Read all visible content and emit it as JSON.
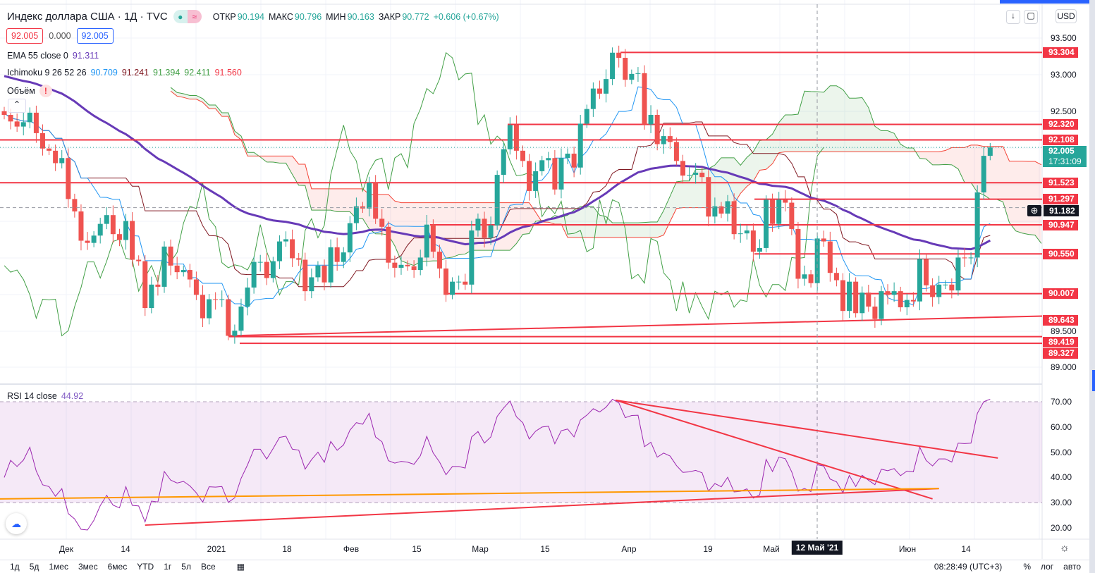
{
  "header": {
    "title": "Индекс доллара США · 1Д · TVC",
    "ohlc": [
      {
        "label": "ОТКР",
        "value": "90.194"
      },
      {
        "label": "МАКС",
        "value": "90.796"
      },
      {
        "label": "МИН",
        "value": "90.163"
      },
      {
        "label": "ЗАКР",
        "value": "90.772"
      }
    ],
    "change": "+0.606 (+0.67%)",
    "sell_price": "92.005",
    "spread": "0.000",
    "buy_price": "92.005"
  },
  "indicators": {
    "ema": {
      "label": "EMA 55 close 0",
      "value": "91.311"
    },
    "ichimoku": {
      "label": "Ichimoku 9 26 52 26",
      "values": [
        "90.709",
        "91.241",
        "91.394",
        "92.411",
        "91.560"
      ]
    },
    "volume": {
      "label": "Объём",
      "warning": "!"
    },
    "rsi": {
      "label": "RSI 14 close",
      "value": "44.92"
    }
  },
  "toolbar": {
    "currency": "USD"
  },
  "price_axis": [
    "93.500",
    "93.000",
    "92.500",
    "89.500",
    "89.000"
  ],
  "rsi_axis": [
    "70.00",
    "60.00",
    "50.00",
    "40.00",
    "30.00",
    "20.00"
  ],
  "levels": [
    "93.304",
    "92.320",
    "92.108",
    "91.523",
    "91.297",
    "90.947",
    "90.550",
    "90.007",
    "89.643",
    "89.419",
    "89.327"
  ],
  "current": {
    "price": "92.005",
    "countdown": "17:31:09"
  },
  "crosshair": {
    "price": "91.182",
    "date": "12 Май '21"
  },
  "time_axis": [
    "Дек",
    "14",
    "2021",
    "18",
    "Фев",
    "15",
    "Мар",
    "15",
    "Апр",
    "19",
    "Май",
    "Июн",
    "14"
  ],
  "bottom_bar": {
    "ranges": [
      "1д",
      "5д",
      "1мес",
      "3мес",
      "6мес",
      "YTD",
      "1г",
      "5л",
      "Все"
    ],
    "time": "08:28:49 (UTC+3)",
    "percent": "%",
    "log": "лог",
    "auto": "авто"
  },
  "colors": {
    "up": "#26a69a",
    "down": "#ef5350",
    "ema": "#673ab7",
    "level": "#f23645",
    "rsi": "#9c27b0"
  },
  "chart_data": {
    "type": "candlestick",
    "symbol": "DXY",
    "interval": "1D",
    "price_range": [
      88.8,
      93.6
    ],
    "closes": [
      92.45,
      92.36,
      92.29,
      92.35,
      92.48,
      92.2,
      91.99,
      91.96,
      91.79,
      91.86,
      91.3,
      91.13,
      90.73,
      90.7,
      90.8,
      90.96,
      91.08,
      90.82,
      90.74,
      91.0,
      90.47,
      90.45,
      89.81,
      90.13,
      90.1,
      90.65,
      90.39,
      90.3,
      90.33,
      90.2,
      89.99,
      89.67,
      89.93,
      89.92,
      89.93,
      89.43,
      89.5,
      89.83,
      90.09,
      90.44,
      90.44,
      90.22,
      90.45,
      90.72,
      90.75,
      90.49,
      90.47,
      90.04,
      90.23,
      90.39,
      90.16,
      90.64,
      90.44,
      90.57,
      90.97,
      91.2,
      91.17,
      91.52,
      91.03,
      90.92,
      90.43,
      90.36,
      90.4,
      90.38,
      90.33,
      90.5,
      90.95,
      90.58,
      90.35,
      89.99,
      90.17,
      90.17,
      90.13,
      90.87,
      91.03,
      90.77,
      90.94,
      91.63,
      91.98,
      92.31,
      91.96,
      91.82,
      91.41,
      91.68,
      91.83,
      91.86,
      91.43,
      91.86,
      91.92,
      91.73,
      92.33,
      92.53,
      92.81,
      92.74,
      92.94,
      93.3,
      93.23,
      92.93,
      93.01,
      93.02,
      92.32,
      92.45,
      92.05,
      92.16,
      92.08,
      91.82,
      91.62,
      91.63,
      91.66,
      91.6,
      91.06,
      91.2,
      91.1,
      91.27,
      90.82,
      90.83,
      90.87,
      90.58,
      90.63,
      91.29,
      90.96,
      91.29,
      91.25,
      90.89,
      90.21,
      90.27,
      90.15,
      90.76,
      90.72,
      90.29,
      90.19,
      89.77,
      90.17,
      89.74,
      90.02,
      89.83,
      89.66,
      90.04,
      89.99,
      90.04,
      89.82,
      89.92,
      89.9,
      90.48,
      90.12,
      89.96,
      90.13,
      90.13,
      90.05,
      90.5,
      90.49,
      90.5,
      91.39,
      91.89,
      92.005
    ],
    "trendline_price": {
      "from": [
        35,
        89.43
      ],
      "to": [
        162,
        89.7
      ]
    },
    "rsi_range": [
      15,
      72
    ],
    "rsi_bands": [
      30,
      70
    ],
    "rsi_trendlines": [
      {
        "color": "#f23645",
        "from": [
          95.5,
          70.6
        ],
        "to": [
          155.2,
          47.7
        ]
      },
      {
        "color": "#f23645",
        "from": [
          95.5,
          70.6
        ],
        "to": [
          145,
          31.5
        ]
      },
      {
        "color": "#f23645",
        "from": [
          22,
          21.1
        ],
        "to": [
          146,
          35.6
        ]
      },
      {
        "color": "#ff9800",
        "from": [
          -0.7,
          31.5
        ],
        "to": [
          146,
          35.6
        ]
      }
    ]
  }
}
